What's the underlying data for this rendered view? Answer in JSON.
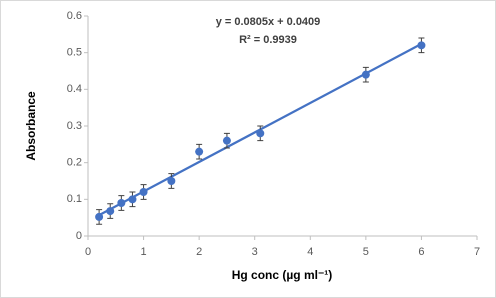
{
  "chart_data": {
    "type": "scatter",
    "x_label": "Hg conc (µg ml⁻¹)",
    "y_label": "Absorbance",
    "x": [
      0.2,
      0.4,
      0.6,
      0.8,
      1.0,
      1.5,
      2.0,
      2.5,
      3.1,
      5.0,
      6.0
    ],
    "values": [
      0.052,
      0.068,
      0.09,
      0.1,
      0.12,
      0.15,
      0.23,
      0.26,
      0.28,
      0.44,
      0.52
    ],
    "errors": [
      0.02,
      0.02,
      0.02,
      0.02,
      0.02,
      0.02,
      0.02,
      0.02,
      0.02,
      0.02,
      0.02
    ],
    "color": "#4472c4",
    "trendline": {
      "slope": 0.0805,
      "intercept": 0.0409,
      "equation": "y = 0.0805x + 0.0409",
      "r2": "R² = 0.9939"
    },
    "xlim": [
      0,
      7
    ],
    "xticks": [
      0,
      1,
      2,
      3,
      4,
      5,
      6,
      7
    ],
    "ylim": [
      0,
      0.6
    ],
    "yticks": [
      0,
      0.1,
      0.2,
      0.3,
      0.4,
      0.5,
      0.6
    ],
    "grid": false
  }
}
